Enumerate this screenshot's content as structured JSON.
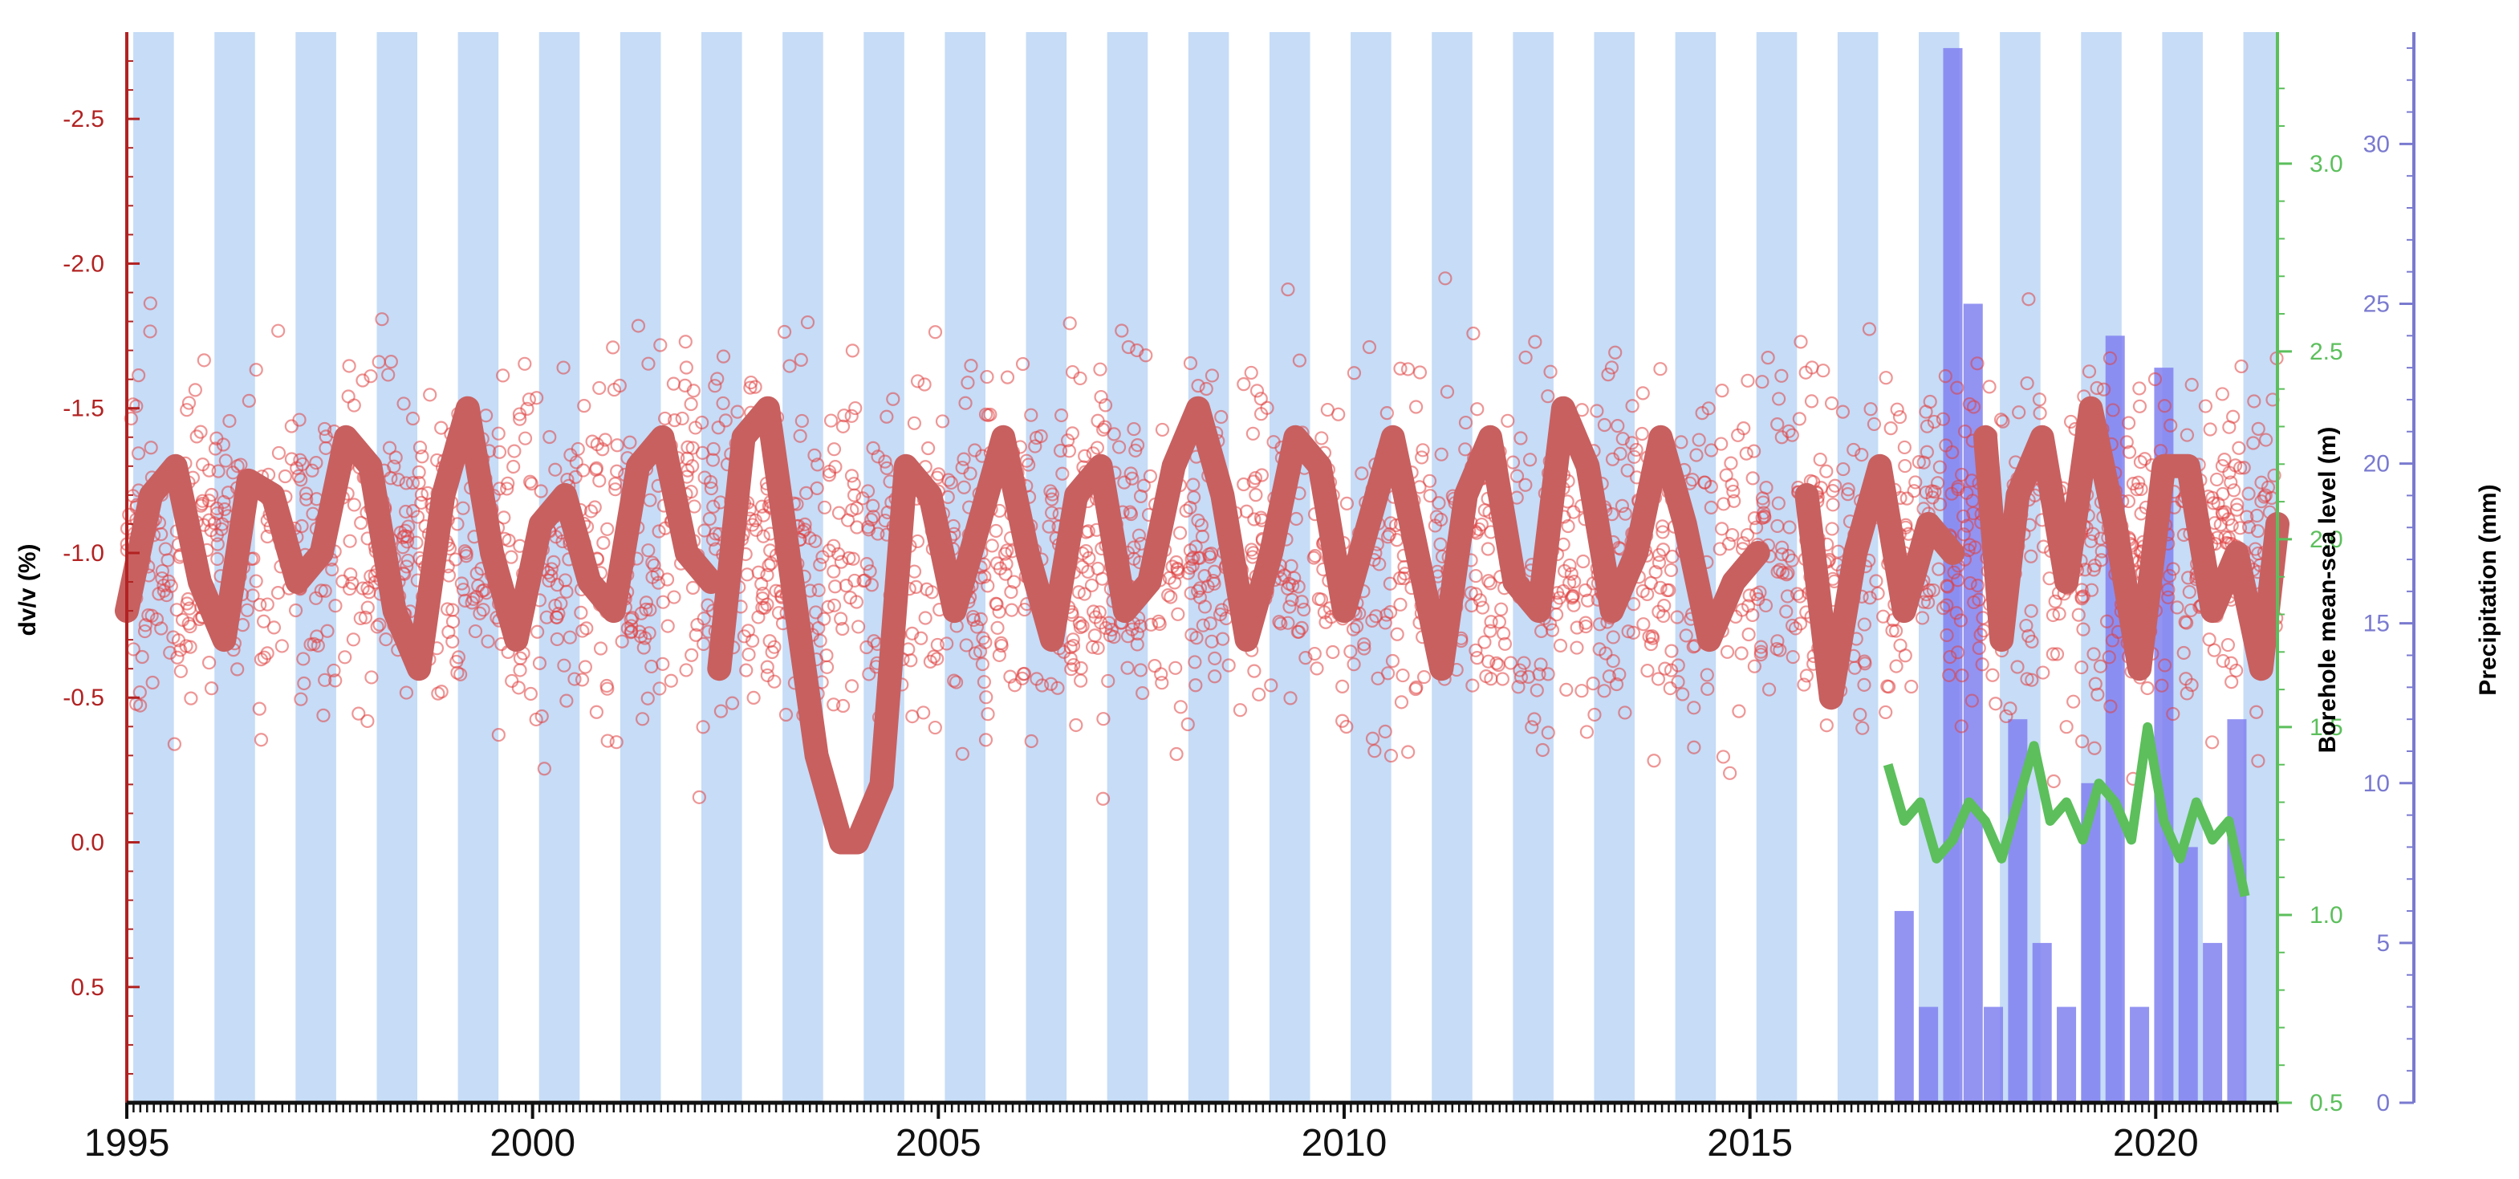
{
  "chart_data": {
    "type": "scatter",
    "title": "",
    "xlabel": "",
    "x_range": [
      1995,
      2021.5
    ],
    "x_tick_labels": [
      "1995",
      "2000",
      "2005",
      "2010",
      "2015",
      "2020"
    ],
    "seasonal_shading": {
      "present": true,
      "color": "#c6dcf7",
      "description_note_free": true
    },
    "axes": {
      "left": {
        "label": "dv/v (%)",
        "color": "#b22222",
        "inverted": true,
        "range": [
          0.9,
          -2.8
        ],
        "tick_labels": [
          "-2.5",
          "-2.0",
          "-1.5",
          "-1.0",
          "-0.5",
          "0.0",
          "0.5"
        ],
        "tick_values": [
          -2.5,
          -2.0,
          -1.5,
          -1.0,
          -0.5,
          0.0,
          0.5
        ]
      },
      "right1": {
        "label": "Borehole mean-sea level (m)",
        "color": "#5cbf5c",
        "range": [
          0.5,
          3.35
        ],
        "tick_labels": [
          "0.5",
          "1.0",
          "1.5",
          "2.0",
          "2.5",
          "3.0"
        ],
        "tick_values": [
          0.5,
          1.0,
          1.5,
          2.0,
          2.5,
          3.0
        ]
      },
      "right2": {
        "label": "Precipitation (mm)",
        "color": "#7a7ad0",
        "range": [
          0,
          33.5
        ],
        "tick_labels": [
          "0",
          "5",
          "10",
          "15",
          "20",
          "25",
          "30"
        ],
        "tick_values": [
          0,
          5,
          10,
          15,
          20,
          25,
          30
        ]
      }
    },
    "series": [
      {
        "kind": "scatter_points",
        "axis": "left",
        "marker": "open-circle",
        "color": "#e04040",
        "x_range": [
          1995,
          2021.5
        ],
        "y_center": -1.0,
        "y_spread": [
          -2.6,
          0.8
        ]
      },
      {
        "kind": "smoothed_line",
        "axis": "left",
        "color": "#c86060",
        "segments": [
          {
            "x": [
              1995.0,
              1995.3,
              1995.6,
              1995.9,
              1996.2,
              1996.5,
              1996.8,
              1997.1,
              1997.4,
              1997.7,
              1998.0,
              1998.3,
              1998.6,
              1998.9,
              1999.2,
              1999.5,
              1999.8,
              2000.1,
              2000.4,
              2000.7,
              2001.0,
              2001.3,
              2001.6,
              2001.9,
              2002.2
            ],
            "y": [
              -0.8,
              -1.2,
              -1.3,
              -0.9,
              -0.7,
              -1.25,
              -1.2,
              -0.9,
              -1.0,
              -1.4,
              -1.3,
              -0.8,
              -0.6,
              -1.2,
              -1.5,
              -1.0,
              -0.7,
              -1.1,
              -1.2,
              -0.9,
              -0.8,
              -1.3,
              -1.4,
              -1.0,
              -0.9
            ]
          },
          {
            "x": [
              2002.3,
              2002.6,
              2002.9,
              2003.2,
              2003.5,
              2003.8,
              2004.0,
              2004.3,
              2004.6,
              2004.9,
              2005.2,
              2005.5,
              2005.8,
              2006.1,
              2006.4,
              2006.7,
              2007.0,
              2007.3,
              2007.6,
              2007.9,
              2008.2,
              2008.5,
              2008.8,
              2009.1,
              2009.4,
              2009.7,
              2010.0,
              2010.3,
              2010.6,
              2010.9,
              2011.2,
              2011.5,
              2011.8,
              2012.1,
              2012.4,
              2012.7,
              2013.0,
              2013.3,
              2013.6,
              2013.9,
              2014.2,
              2014.5,
              2014.8,
              2015.1
            ],
            "y": [
              -0.6,
              -1.4,
              -1.5,
              -0.9,
              -0.3,
              0.0,
              0.0,
              -0.2,
              -1.3,
              -1.2,
              -0.8,
              -1.1,
              -1.4,
              -1.0,
              -0.7,
              -1.2,
              -1.3,
              -0.8,
              -0.9,
              -1.3,
              -1.5,
              -1.2,
              -0.7,
              -1.0,
              -1.4,
              -1.3,
              -0.8,
              -1.1,
              -1.4,
              -1.0,
              -0.6,
              -1.2,
              -1.4,
              -0.9,
              -0.8,
              -1.5,
              -1.3,
              -0.8,
              -1.0,
              -1.4,
              -1.1,
              -0.7,
              -0.9,
              -1.0
            ]
          },
          {
            "x": [
              2015.7,
              2016.0,
              2016.3,
              2016.6,
              2016.9,
              2017.2,
              2017.5
            ],
            "y": [
              -1.2,
              -0.5,
              -1.0,
              -1.3,
              -0.8,
              -1.1,
              -1.0
            ]
          },
          {
            "x": [
              2017.9,
              2018.1,
              2018.3,
              2018.6,
              2018.9,
              2019.2,
              2019.5,
              2019.8,
              2020.1,
              2020.4,
              2020.7,
              2021.0,
              2021.3,
              2021.5
            ],
            "y": [
              -1.4,
              -0.7,
              -1.2,
              -1.4,
              -0.9,
              -1.5,
              -1.1,
              -0.6,
              -1.3,
              -1.3,
              -0.8,
              -1.0,
              -0.6,
              -1.1
            ]
          }
        ]
      },
      {
        "kind": "line",
        "axis": "right1",
        "color": "#5cbf5c",
        "x": [
          2016.7,
          2016.9,
          2017.1,
          2017.3,
          2017.5,
          2017.7,
          2017.9,
          2018.1,
          2018.3,
          2018.5,
          2018.7,
          2018.9,
          2019.1,
          2019.3,
          2019.5,
          2019.7,
          2019.9,
          2020.1,
          2020.3,
          2020.5,
          2020.7,
          2020.9,
          2021.1
        ],
        "y": [
          1.4,
          1.25,
          1.3,
          1.15,
          1.2,
          1.3,
          1.25,
          1.15,
          1.3,
          1.45,
          1.25,
          1.3,
          1.2,
          1.35,
          1.3,
          1.2,
          1.5,
          1.25,
          1.15,
          1.3,
          1.2,
          1.25,
          1.05
        ]
      },
      {
        "kind": "bars",
        "axis": "right2",
        "color": "#8080f0",
        "x": [
          2016.9,
          2017.2,
          2017.5,
          2017.75,
          2018.0,
          2018.3,
          2018.6,
          2018.9,
          2019.2,
          2019.5,
          2019.8,
          2020.1,
          2020.4,
          2020.7,
          2021.0
        ],
        "values": [
          6,
          3,
          33,
          25,
          3,
          12,
          5,
          3,
          10,
          24,
          3,
          23,
          8,
          5,
          12
        ]
      }
    ]
  }
}
